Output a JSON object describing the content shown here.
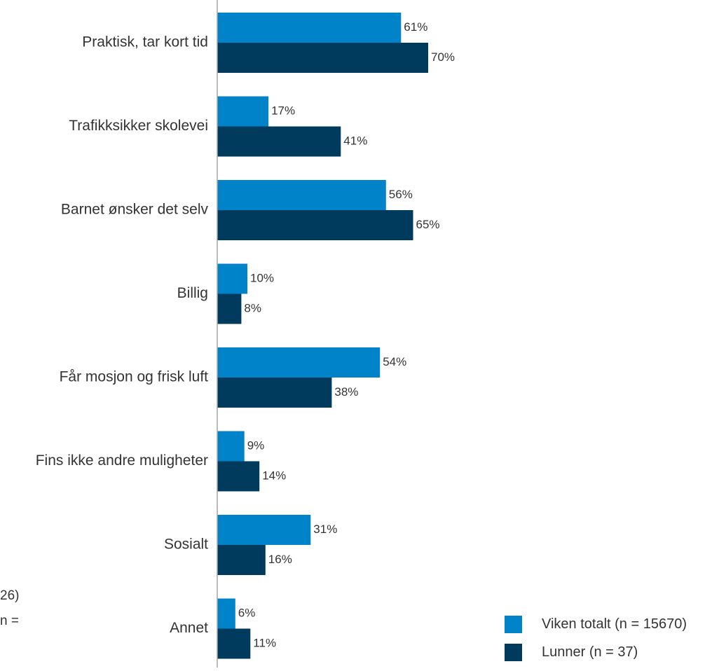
{
  "chart_data": {
    "type": "bar",
    "orientation": "horizontal",
    "categories": [
      "Praktisk, tar kort tid",
      "Trafikksikker skolevei",
      "Barnet ønsker det selv",
      "Billig",
      "Får mosjon og frisk luft",
      "Fins ikke andre muligheter",
      "Sosialt",
      "Annet"
    ],
    "series": [
      {
        "name": "Viken totalt (n = 15670)",
        "color": "#0083C9",
        "values": [
          61,
          17,
          56,
          10,
          54,
          9,
          31,
          6
        ],
        "labels": [
          "61%",
          "17%",
          "56%",
          "10%",
          "54%",
          "9%",
          "31%",
          "6%"
        ]
      },
      {
        "name": "Lunner (n = 37)",
        "color": "#003A5D",
        "values": [
          70,
          41,
          65,
          8,
          38,
          14,
          16,
          11
        ],
        "labels": [
          "70%",
          "41%",
          "65%",
          "8%",
          "38%",
          "14%",
          "16%",
          "11%"
        ]
      }
    ],
    "xlim": [
      0,
      100
    ],
    "grid": false,
    "legend_position": "bottom-right"
  },
  "cut_off_text": {
    "line1": "26)",
    "line2": "n ="
  }
}
